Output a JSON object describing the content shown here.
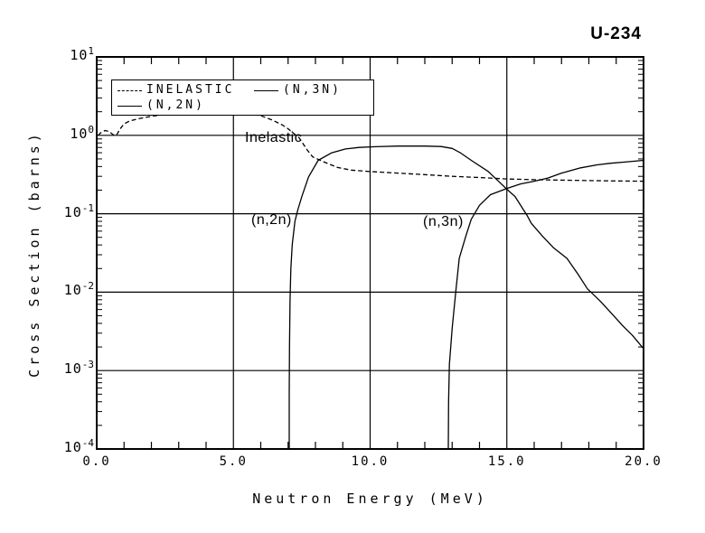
{
  "header": {
    "title": "U-234"
  },
  "chart_data": {
    "type": "line",
    "title": "U-234",
    "xlabel": "Neutron Energy (MeV)",
    "ylabel": "Cross Section (barns)",
    "x_axis": {
      "min": 0,
      "max": 20,
      "major_ticks": [
        0,
        5,
        10,
        15,
        20
      ],
      "tick_labels": [
        "0.0",
        "5.0",
        "10.0",
        "15.0",
        "20.0"
      ],
      "minor_tick_step": 1
    },
    "y_axis": {
      "scale": "log",
      "min_exp": -4,
      "max_exp": 1,
      "tick_exponents": [
        1,
        0,
        -1,
        -2,
        -3,
        -4
      ]
    },
    "grid": true,
    "legend": {
      "position": "top-left",
      "entries": [
        {
          "label": "INELASTIC",
          "style": "dashed"
        },
        {
          "label": "(N,3N)",
          "style": "solid"
        },
        {
          "label": "(N,2N)",
          "style": "solid"
        }
      ]
    },
    "annotations": [
      {
        "name": "inelastic",
        "text": "Inelastic"
      },
      {
        "name": "n2n",
        "text": "(n,2n)"
      },
      {
        "name": "n3n",
        "text": "(n,3n)"
      }
    ],
    "series": [
      {
        "name": "INELASTIC",
        "style": "dashed",
        "points": [
          [
            0.05,
            1.0
          ],
          [
            0.15,
            1.08
          ],
          [
            0.3,
            1.15
          ],
          [
            0.45,
            1.12
          ],
          [
            0.6,
            1.02
          ],
          [
            0.72,
            1.0
          ],
          [
            0.85,
            1.2
          ],
          [
            1.0,
            1.4
          ],
          [
            1.2,
            1.52
          ],
          [
            1.5,
            1.62
          ],
          [
            2.0,
            1.75
          ],
          [
            2.5,
            1.84
          ],
          [
            3.0,
            1.9
          ],
          [
            3.5,
            1.92
          ],
          [
            4.5,
            1.93
          ],
          [
            5.5,
            1.9
          ],
          [
            6.0,
            1.78
          ],
          [
            6.4,
            1.58
          ],
          [
            6.8,
            1.35
          ],
          [
            7.0,
            1.21
          ],
          [
            7.4,
            0.93
          ],
          [
            7.7,
            0.65
          ],
          [
            7.9,
            0.53
          ],
          [
            8.3,
            0.46
          ],
          [
            8.8,
            0.39
          ],
          [
            9.3,
            0.36
          ],
          [
            10,
            0.345
          ],
          [
            11,
            0.33
          ],
          [
            12,
            0.315
          ],
          [
            13,
            0.3
          ],
          [
            14,
            0.29
          ],
          [
            15,
            0.278
          ],
          [
            16,
            0.272
          ],
          [
            17,
            0.268
          ],
          [
            18,
            0.265
          ],
          [
            19,
            0.262
          ],
          [
            20,
            0.26
          ]
        ]
      },
      {
        "name": "(N,2N)",
        "style": "solid",
        "points": [
          [
            7.04,
            0.0001
          ],
          [
            7.04,
            0.0005
          ],
          [
            7.05,
            0.002
          ],
          [
            7.07,
            0.008
          ],
          [
            7.1,
            0.02
          ],
          [
            7.15,
            0.04
          ],
          [
            7.25,
            0.08
          ],
          [
            7.35,
            0.11
          ],
          [
            7.5,
            0.165
          ],
          [
            7.75,
            0.295
          ],
          [
            8.1,
            0.48
          ],
          [
            8.6,
            0.6
          ],
          [
            9.1,
            0.67
          ],
          [
            9.6,
            0.7
          ],
          [
            10.2,
            0.715
          ],
          [
            11,
            0.73
          ],
          [
            12,
            0.73
          ],
          [
            12.6,
            0.72
          ],
          [
            13,
            0.68
          ],
          [
            13.3,
            0.6
          ],
          [
            13.7,
            0.48
          ],
          [
            14.3,
            0.35
          ],
          [
            14.6,
            0.28
          ],
          [
            15,
            0.205
          ],
          [
            15.3,
            0.166
          ],
          [
            15.75,
            0.094
          ],
          [
            15.9,
            0.075
          ],
          [
            16.3,
            0.052
          ],
          [
            16.7,
            0.037
          ],
          [
            17.2,
            0.027
          ],
          [
            17.6,
            0.017
          ],
          [
            17.95,
            0.011
          ],
          [
            18.4,
            0.0078
          ],
          [
            18.8,
            0.0055
          ],
          [
            19.25,
            0.0037
          ],
          [
            19.6,
            0.0028
          ],
          [
            20,
            0.0019
          ]
        ]
      },
      {
        "name": "(N,3N)",
        "style": "solid",
        "points": [
          [
            12.86,
            0.0001
          ],
          [
            12.87,
            0.0004
          ],
          [
            12.9,
            0.0012
          ],
          [
            13.0,
            0.0035
          ],
          [
            13.13,
            0.01
          ],
          [
            13.26,
            0.027
          ],
          [
            13.5,
            0.052
          ],
          [
            13.7,
            0.085
          ],
          [
            14.0,
            0.128
          ],
          [
            14.4,
            0.175
          ],
          [
            15.0,
            0.21
          ],
          [
            15.5,
            0.24
          ],
          [
            16.0,
            0.26
          ],
          [
            16.5,
            0.285
          ],
          [
            17.0,
            0.33
          ],
          [
            17.7,
            0.385
          ],
          [
            18.3,
            0.42
          ],
          [
            18.8,
            0.44
          ],
          [
            19.4,
            0.46
          ],
          [
            20,
            0.48
          ]
        ]
      }
    ]
  }
}
